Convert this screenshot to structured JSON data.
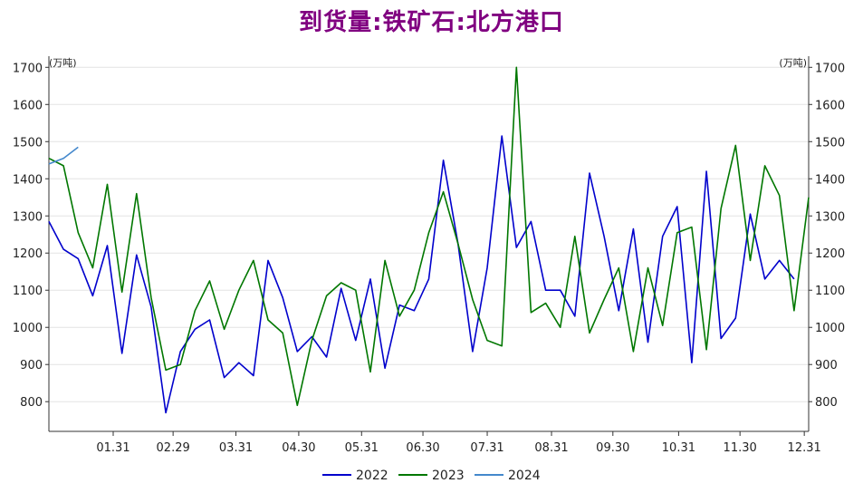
{
  "chart_data": {
    "type": "line",
    "title": "到货量:铁矿石:北方港口",
    "y_unit_left": "(万吨)",
    "y_unit_right": "(万吨)",
    "ylim": [
      720,
      1730
    ],
    "yticks": [
      800,
      900,
      1000,
      1100,
      1200,
      1300,
      1400,
      1500,
      1600,
      1700
    ],
    "xlim": [
      0,
      52
    ],
    "xticks": [
      {
        "label": "01.31",
        "x": 4.4
      },
      {
        "label": "02.29",
        "x": 8.5
      },
      {
        "label": "03.31",
        "x": 12.8
      },
      {
        "label": "04.30",
        "x": 17.1
      },
      {
        "label": "05.31",
        "x": 21.4
      },
      {
        "label": "06.30",
        "x": 25.6
      },
      {
        "label": "07.31",
        "x": 30.0
      },
      {
        "label": "08.31",
        "x": 34.4
      },
      {
        "label": "09.30",
        "x": 38.6
      },
      {
        "label": "10.31",
        "x": 43.1
      },
      {
        "label": "11.30",
        "x": 47.3
      },
      {
        "label": "12.31",
        "x": 51.7
      }
    ],
    "grid": true,
    "legend_position": "bottom",
    "series": [
      {
        "name": "2022",
        "color": "#0000cc",
        "x": [
          0,
          1,
          2,
          3,
          4,
          5,
          6,
          7,
          8,
          9,
          10,
          11,
          12,
          13,
          14,
          15,
          16,
          17,
          18,
          19,
          20,
          21,
          22,
          23,
          24,
          25,
          26,
          27,
          28,
          29,
          30,
          31,
          32,
          33,
          34,
          35,
          36,
          37,
          38,
          39,
          40,
          41,
          42,
          43,
          44,
          45,
          46,
          47,
          48,
          49,
          50,
          51
        ],
        "values": [
          1285,
          1210,
          1185,
          1085,
          1220,
          930,
          1195,
          1055,
          770,
          935,
          995,
          1020,
          865,
          905,
          870,
          1180,
          1080,
          935,
          975,
          920,
          1105,
          965,
          1130,
          890,
          1060,
          1045,
          1130,
          1450,
          1225,
          935,
          1160,
          1515,
          1215,
          1285,
          1100,
          1100,
          1030,
          1415,
          1245,
          1045,
          1265,
          960,
          1245,
          1325,
          905,
          1420,
          970,
          1025,
          1305,
          1130,
          1180,
          1130
        ]
      },
      {
        "name": "2023",
        "color": "#007700",
        "x": [
          0,
          1,
          2,
          3,
          4,
          5,
          6,
          7,
          8,
          9,
          10,
          11,
          12,
          13,
          14,
          15,
          16,
          17,
          18,
          19,
          20,
          21,
          22,
          23,
          24,
          25,
          26,
          27,
          28,
          29,
          30,
          31,
          32,
          33,
          34,
          35,
          36,
          37,
          38,
          39,
          40,
          41,
          42,
          43,
          44,
          45,
          46,
          47,
          48,
          49,
          50,
          51,
          52
        ],
        "values": [
          1455,
          1435,
          1255,
          1160,
          1385,
          1095,
          1360,
          1080,
          885,
          900,
          1045,
          1125,
          995,
          1100,
          1180,
          1020,
          985,
          790,
          965,
          1085,
          1120,
          1100,
          880,
          1180,
          1030,
          1100,
          1255,
          1365,
          1225,
          1075,
          965,
          950,
          1700,
          1040,
          1065,
          1000,
          1245,
          985,
          1075,
          1160,
          935,
          1160,
          1005,
          1255,
          1270,
          940,
          1320,
          1490,
          1180,
          1435,
          1355,
          1045,
          1350
        ]
      },
      {
        "name": "2024",
        "color": "#4488cc",
        "x": [
          0,
          1,
          2
        ],
        "values": [
          1440,
          1455,
          1485
        ]
      }
    ]
  }
}
